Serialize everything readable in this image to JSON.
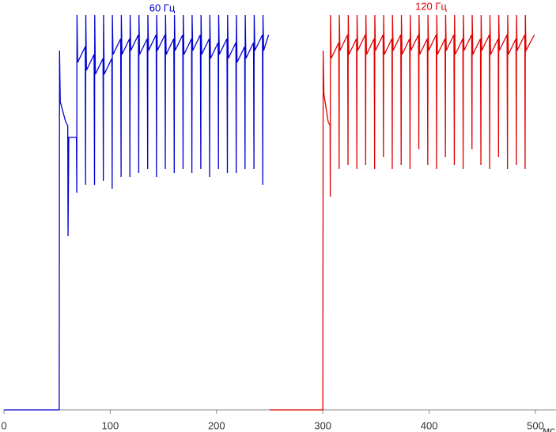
{
  "chart_data": {
    "type": "line",
    "annotations": [
      "60 Гц",
      "120 Гц"
    ],
    "xlabel": "мс",
    "xlim": [
      0,
      500
    ],
    "xticks": [
      0,
      100,
      200,
      300,
      400,
      500
    ],
    "ylim": [
      0,
      100
    ],
    "series": [
      {
        "color": "#0000d0",
        "x": [
          0,
          52,
          52.3,
          53,
          58,
          60,
          60.3,
          61,
          68.2,
          68.5,
          68.7,
          69.3,
          76.5,
          76.8,
          77,
          77.6,
          84.8,
          85.2,
          85.4,
          86,
          93.2,
          93.5,
          93.7,
          94.3,
          101.5,
          101.8,
          102,
          102.6,
          109.8,
          110.2,
          110.4,
          111,
          118.2,
          118.5,
          118.7,
          119.3,
          126.5,
          126.8,
          127,
          127.6,
          134.8,
          135.2,
          135.4,
          136,
          143.2,
          143.5,
          143.7,
          144.3,
          151.5,
          151.8,
          152,
          152.6,
          159.8,
          160.2,
          160.4,
          161,
          168.2,
          168.5,
          168.7,
          169.3,
          176.5,
          176.8,
          177,
          177.6,
          184.8,
          185.2,
          185.4,
          186,
          193.2,
          193.5,
          193.7,
          194.3,
          201.5,
          201.8,
          202,
          202.6,
          209.8,
          210.2,
          210.4,
          211,
          218.2,
          218.5,
          218.7,
          219.3,
          226.5,
          226.8,
          227,
          227.6,
          234.8,
          235.2,
          235.4,
          236,
          243.2,
          243.5,
          243.7,
          244.3,
          249
        ],
        "values": [
          0,
          0,
          91,
          78,
          73,
          72,
          44,
          69,
          69,
          55,
          100,
          88,
          92,
          57,
          100,
          86,
          90,
          57,
          100,
          85,
          89,
          58,
          100,
          85,
          89,
          56,
          100,
          90,
          94,
          59,
          100,
          90,
          94,
          59,
          100,
          91,
          95,
          60,
          100,
          90,
          94,
          61,
          100,
          91,
          95,
          59,
          100,
          91,
          95,
          61,
          100,
          90,
          94,
          60,
          100,
          91,
          95,
          61,
          100,
          90,
          94,
          60,
          100,
          91,
          95,
          61,
          100,
          90,
          94,
          59,
          100,
          89,
          93,
          61,
          100,
          90,
          94,
          60,
          100,
          89,
          93,
          60,
          100,
          88,
          92,
          61,
          100,
          89,
          93,
          61,
          100,
          91,
          95,
          57,
          100,
          91,
          95
        ]
      },
      {
        "color": "#e00000",
        "x": [
          250,
          300,
          300.3,
          301,
          305,
          306.8,
          307,
          307.2,
          307.8,
          315,
          315.3,
          315.5,
          316.1,
          323.3,
          323.7,
          323.9,
          324.5,
          331.7,
          332,
          332.2,
          332.8,
          340,
          340.3,
          340.5,
          341.1,
          348.3,
          348.7,
          348.9,
          349.5,
          356.7,
          357,
          357.2,
          357.8,
          365,
          365.3,
          365.5,
          366.1,
          373.3,
          373.7,
          373.9,
          374.5,
          381.7,
          382,
          382.2,
          382.8,
          390,
          390.3,
          390.5,
          391.1,
          398.3,
          398.7,
          398.9,
          399.5,
          406.7,
          407,
          407.2,
          407.8,
          415,
          415.3,
          415.5,
          416.1,
          423.3,
          423.7,
          423.9,
          424.5,
          431.7,
          432,
          432.2,
          432.8,
          440,
          440.3,
          440.5,
          441.1,
          448.3,
          448.7,
          448.9,
          449.5,
          456.7,
          457,
          457.2,
          457.8,
          465,
          465.3,
          465.5,
          466.1,
          473.3,
          473.7,
          473.9,
          474.5,
          481.7,
          482,
          482.2,
          482.8,
          490,
          490.3,
          490.5,
          491.1,
          499
        ],
        "values": [
          0,
          0,
          91,
          80,
          73,
          72,
          54,
          100,
          89,
          93,
          61,
          100,
          91,
          95,
          62,
          100,
          90,
          94,
          61,
          100,
          91,
          95,
          62,
          100,
          90,
          94,
          61,
          100,
          91,
          95,
          64,
          100,
          90,
          94,
          61,
          100,
          91,
          95,
          62,
          100,
          90,
          94,
          61,
          100,
          91,
          95,
          66,
          100,
          90,
          94,
          62,
          100,
          91,
          95,
          61,
          100,
          90,
          94,
          64,
          100,
          91,
          95,
          62,
          100,
          90,
          94,
          61,
          100,
          91,
          95,
          66,
          100,
          90,
          94,
          62,
          100,
          91,
          95,
          61,
          100,
          90,
          94,
          64,
          100,
          91,
          95,
          61,
          100,
          90,
          94,
          62,
          100,
          91,
          95,
          61,
          100,
          91,
          95
        ]
      }
    ]
  }
}
